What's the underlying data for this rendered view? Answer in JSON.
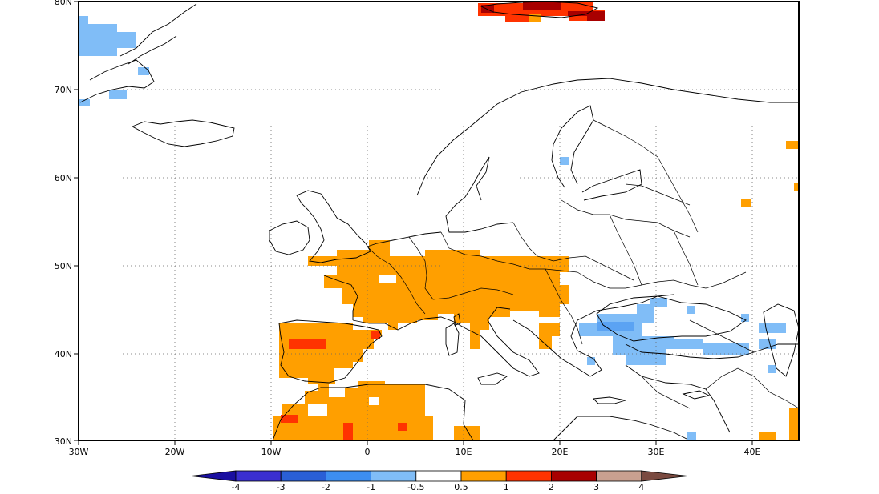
{
  "map": {
    "lon_labels": [
      "30W",
      "20W",
      "10W",
      "0",
      "10E",
      "20E",
      "30E",
      "40E"
    ],
    "lat_labels": [
      "30N",
      "40N",
      "50N",
      "60N",
      "70N",
      "80N"
    ],
    "lon_range": [
      -30,
      45
    ],
    "lat_range": [
      30,
      80
    ],
    "grid_style": "dotted"
  },
  "colorbar": {
    "tick_labels": [
      "-4",
      "-3",
      "-2",
      "-1",
      "-0.5",
      "0.5",
      "1",
      "2",
      "3",
      "4"
    ],
    "colors": [
      "#1a0fa0",
      "#3a2fd0",
      "#2a5fd6",
      "#3d8ef0",
      "#80bdf7",
      "#ffffff",
      "#ff9f00",
      "#ff3300",
      "#a80000",
      "#c9a090",
      "#7a4a40"
    ]
  },
  "anomaly_cells": {
    "positive_1": "#ff9f00",
    "positive_2": "#ff3300",
    "positive_3": "#a80000",
    "negative_05": "#80bdf7"
  }
}
